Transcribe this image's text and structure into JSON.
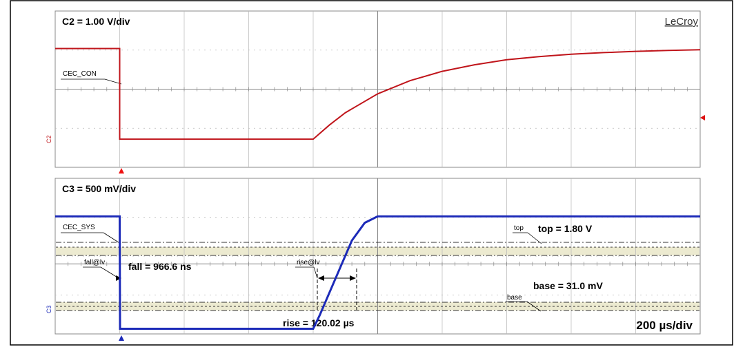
{
  "brand": "LeCroy",
  "timebase": "200 µs/div",
  "colors": {
    "c2_trace": "#c0151b",
    "c3_trace": "#1c2ab8",
    "band": "#ecead0",
    "grid": "#b8b8b8"
  },
  "chart_data": [
    {
      "type": "line",
      "channel": "C2",
      "scale_label": "C2 = 1.00 V/div",
      "trace_label": "CEC_CON",
      "ground_marker": "C2",
      "x_unit": "µs",
      "y_unit": "V",
      "xlim": [
        -200,
        1800
      ],
      "ylim": [
        -2.8,
        2.2
      ],
      "grid": true,
      "series": [
        {
          "name": "CEC_CON",
          "x": [
            -200,
            0,
            0.01,
            600,
            650,
            700,
            800,
            900,
            1000,
            1100,
            1200,
            1300,
            1400,
            1500,
            1600,
            1700,
            1800
          ],
          "y": [
            1.0,
            1.0,
            -1.9,
            -1.9,
            -1.45,
            -1.05,
            -0.45,
            -0.03,
            0.27,
            0.48,
            0.64,
            0.74,
            0.82,
            0.87,
            0.91,
            0.94,
            0.96
          ]
        }
      ]
    },
    {
      "type": "line",
      "channel": "C3",
      "scale_label": "C3 = 500 mV/div",
      "trace_label": "CEC_SYS",
      "ground_marker": "C3",
      "x_unit": "µs",
      "y_unit": "V",
      "xlim": [
        -200,
        1800
      ],
      "ylim": [
        -0.05,
        2.4
      ],
      "grid": true,
      "series": [
        {
          "name": "CEC_SYS",
          "x": [
            -200,
            0,
            0.97,
            600,
            620,
            680,
            720,
            760,
            800,
            1800
          ],
          "y": [
            1.8,
            1.8,
            0.031,
            0.031,
            0.24,
            0.95,
            1.42,
            1.7,
            1.8,
            1.8
          ]
        }
      ],
      "annotations": {
        "fall_marker": "fall@lv",
        "fall_text": "fall = 966.6 ns",
        "rise_marker": "rise@lv",
        "rise_text": "rise =  120.02 µs",
        "top_marker": "top",
        "top_text": "top = 1.80 V",
        "base_marker": "base",
        "base_text": "base = 31.0 mV"
      }
    }
  ]
}
